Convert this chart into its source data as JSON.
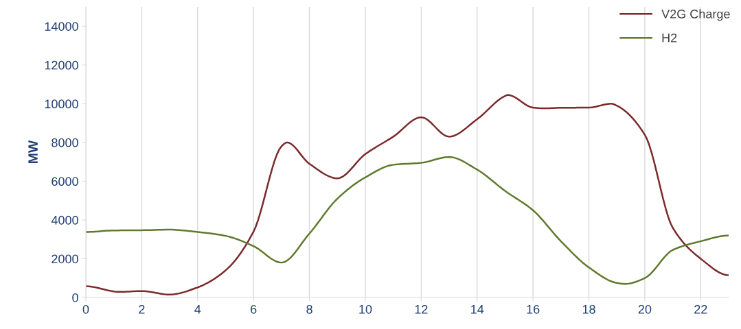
{
  "chart_data": {
    "type": "line",
    "ylabel": "MW",
    "series": [
      {
        "name": "V2G Charge",
        "color": "#7b2a2c",
        "x": [
          0,
          1.2,
          2,
          3,
          4,
          5,
          6,
          7,
          7.2,
          8,
          9,
          10,
          11,
          12,
          13,
          14,
          15,
          15.1,
          16,
          16.4,
          17,
          18,
          18.8,
          19,
          20,
          21,
          22,
          23
        ],
        "values": [
          580,
          290,
          330,
          150,
          520,
          1400,
          3400,
          7800,
          8000,
          6900,
          6150,
          7400,
          8300,
          9300,
          8300,
          9200,
          10400,
          10450,
          9800,
          9760,
          9790,
          9800,
          10000,
          9900,
          8400,
          3600,
          2000,
          1150
        ]
      },
      {
        "name": "H2",
        "color": "#5f7a2e",
        "x": [
          0,
          1,
          2,
          3,
          4,
          5,
          6,
          7,
          8,
          9,
          10,
          11,
          12,
          13,
          14,
          15,
          16,
          17,
          18,
          19,
          19.3,
          20,
          21,
          22,
          23
        ],
        "values": [
          3380,
          3460,
          3470,
          3500,
          3380,
          3180,
          2650,
          1800,
          3300,
          5100,
          6200,
          6850,
          6950,
          7250,
          6600,
          5500,
          4500,
          2900,
          1550,
          750,
          700,
          1000,
          2450,
          2900,
          3200
        ]
      }
    ],
    "xlim": [
      0,
      23
    ],
    "xticks": [
      0,
      2,
      4,
      6,
      8,
      10,
      12,
      14,
      16,
      18,
      20,
      22
    ],
    "ylim": [
      0,
      15000
    ],
    "yticks": [
      0,
      2000,
      4000,
      6000,
      8000,
      10000,
      12000,
      14000
    ],
    "grid": "x",
    "legend": "top right",
    "marker": "none",
    "line_style": "solid"
  }
}
